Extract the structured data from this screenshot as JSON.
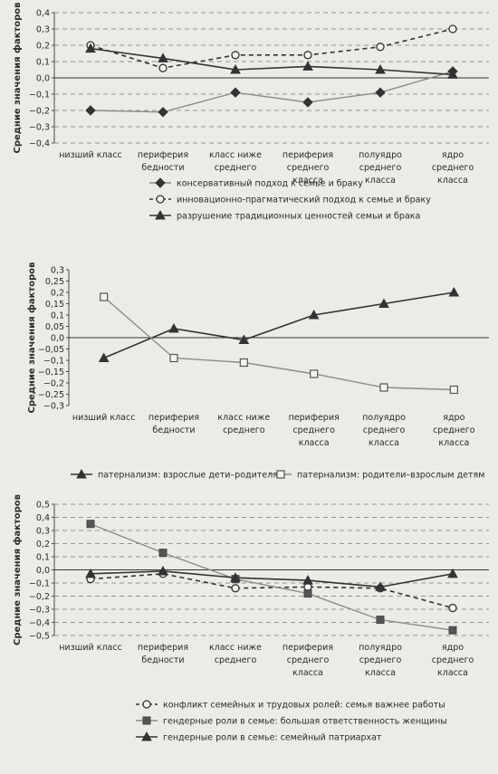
{
  "chart_data": [
    {
      "type": "line",
      "ylabel": "Средние значения факторов",
      "ylim": [
        -0.4,
        0.4
      ],
      "ytick_step": 0.1,
      "grid": true,
      "legend_position": "bottom",
      "categories": [
        "низший класс",
        "периферия бедности",
        "класс ниже среднего",
        "периферия среднего класса",
        "полуядро среднего класса",
        "ядро среднего класса"
      ],
      "category_lines": [
        [
          "низший класс"
        ],
        [
          "периферия",
          "бедности"
        ],
        [
          "класс ниже",
          "среднего"
        ],
        [
          "периферия",
          "среднего",
          "класса"
        ],
        [
          "полуядро",
          "среднего",
          "класса"
        ],
        [
          "ядро",
          "среднего",
          "класса"
        ]
      ],
      "series": [
        {
          "name": "консервативный подход к семье и браку",
          "marker": "diamond",
          "color": "#8c8c8c",
          "dash": "solid",
          "values": [
            -0.2,
            -0.21,
            -0.09,
            -0.15,
            -0.09,
            0.04
          ]
        },
        {
          "name": "инновационно-прагматический подход к семье и браку",
          "marker": "circle-open",
          "color": "#333333",
          "dash": "dashed",
          "values": [
            0.2,
            0.06,
            0.14,
            0.14,
            0.19,
            0.3
          ]
        },
        {
          "name": "разрушение традиционных ценностей семьи и брака",
          "marker": "triangle",
          "color": "#333333",
          "dash": "solid",
          "values": [
            0.18,
            0.12,
            0.05,
            0.07,
            0.05,
            0.02
          ]
        }
      ]
    },
    {
      "type": "line",
      "ylabel": "Средние значения факторов",
      "ylim": [
        -0.3,
        0.3
      ],
      "ytick_step": 0.05,
      "grid": false,
      "legend_position": "bottom",
      "categories": [
        "низший класс",
        "периферия бедности",
        "класс ниже среднего",
        "периферия среднего класса",
        "полуядро среднего класса",
        "ядро среднего класса"
      ],
      "category_lines": [
        [
          "низший класс"
        ],
        [
          "периферия",
          "бедности"
        ],
        [
          "класс ниже",
          "среднего"
        ],
        [
          "периферия",
          "среднего",
          "класса"
        ],
        [
          "полуядро",
          "среднего",
          "класса"
        ],
        [
          "ядро",
          "среднего",
          "класса"
        ]
      ],
      "series": [
        {
          "name": "патернализм: взрослые дети–родителям",
          "marker": "triangle",
          "color": "#333333",
          "dash": "solid",
          "values": [
            -0.09,
            0.04,
            -0.01,
            0.1,
            0.15,
            0.2
          ]
        },
        {
          "name": "патернализм: родители–взрослым детям",
          "marker": "square-open",
          "color": "#8c8c8c",
          "dash": "solid",
          "values": [
            0.18,
            -0.09,
            -0.11,
            -0.16,
            -0.22,
            -0.23
          ]
        }
      ]
    },
    {
      "type": "line",
      "ylabel": "Средние значения факторов",
      "ylim": [
        -0.5,
        0.5
      ],
      "ytick_step": 0.1,
      "grid": true,
      "legend_position": "bottom",
      "categories": [
        "низший класс",
        "периферия бедности",
        "класс ниже среднего",
        "периферия среднего класса",
        "полуядро среднего класса",
        "ядро среднего класса"
      ],
      "category_lines": [
        [
          "низший класс"
        ],
        [
          "периферия",
          "бедности"
        ],
        [
          "класс ниже",
          "среднего"
        ],
        [
          "периферия",
          "среднего",
          "класса"
        ],
        [
          "полуядро",
          "среднего",
          "класса"
        ],
        [
          "ядро",
          "среднего",
          "класса"
        ]
      ],
      "series": [
        {
          "name": "конфликт семейных и трудовых ролей: семья важнее работы",
          "marker": "circle-open",
          "color": "#333333",
          "dash": "dashed",
          "values": [
            -0.07,
            -0.03,
            -0.14,
            -0.13,
            -0.14,
            -0.29
          ]
        },
        {
          "name": "гендерные роли в семье: большая ответственность женщины",
          "marker": "square",
          "color": "#8c8c8c",
          "dash": "solid",
          "values": [
            0.35,
            0.13,
            -0.07,
            -0.18,
            -0.38,
            -0.46
          ]
        },
        {
          "name": "гендерные роли в семье: семейный патриархат",
          "marker": "triangle",
          "color": "#333333",
          "dash": "solid",
          "values": [
            -0.03,
            -0.01,
            -0.06,
            -0.08,
            -0.13,
            -0.03
          ]
        }
      ]
    }
  ]
}
